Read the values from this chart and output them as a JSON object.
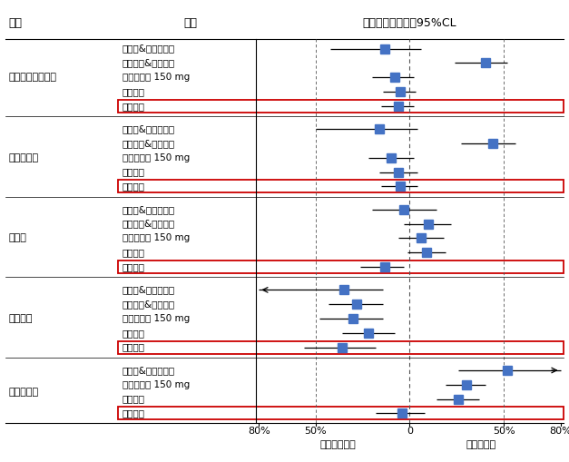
{
  "col1_header": "结局",
  "col2_header": "药物",
  "col3_header": "相对风险比降幅及95%CL",
  "xlabel_left": "对照方案更佳",
  "xlabel_right": "华法林更佳",
  "xtick_labels": [
    "80%",
    "50%",
    "0",
    "50%",
    "80%"
  ],
  "xtick_positions": [
    -80,
    -50,
    0,
    50,
    80
  ],
  "dashed_lines": [
    -50,
    0,
    50
  ],
  "groups": [
    {
      "name": "卒中或系统性栓塞",
      "rows": [
        {
          "label": "三氟柳&醋硝香豆醇",
          "point": -13,
          "ci_low": -42,
          "ci_high": 6,
          "arrow_left": false,
          "arrow_right": false,
          "highlight": false
        },
        {
          "label": "氯吡格雷&阿司匹林",
          "point": 40,
          "ci_low": 24,
          "ci_high": 52,
          "arrow_left": false,
          "arrow_right": false,
          "highlight": false
        },
        {
          "label": "达比加群酯 150 mg",
          "point": -8,
          "ci_low": -20,
          "ci_high": 2,
          "arrow_left": false,
          "arrow_right": false,
          "highlight": false
        },
        {
          "label": "利伐沙班",
          "point": -5,
          "ci_low": -14,
          "ci_high": 3,
          "arrow_left": false,
          "arrow_right": false,
          "highlight": false
        },
        {
          "label": "阿哌沙班",
          "point": -6,
          "ci_low": -15,
          "ci_high": 2,
          "arrow_left": false,
          "arrow_right": false,
          "highlight": true
        }
      ]
    },
    {
      "name": "缺血性卒中",
      "rows": [
        {
          "label": "三氟柳&醋硝香豆醇",
          "point": -16,
          "ci_low": -50,
          "ci_high": 4,
          "arrow_left": false,
          "arrow_right": false,
          "highlight": false
        },
        {
          "label": "氯吡格雷&阿司匹林",
          "point": 44,
          "ci_low": 27,
          "ci_high": 56,
          "arrow_left": false,
          "arrow_right": false,
          "highlight": false
        },
        {
          "label": "达比加群酯 150 mg",
          "point": -10,
          "ci_low": -22,
          "ci_high": 2,
          "arrow_left": false,
          "arrow_right": false,
          "highlight": false
        },
        {
          "label": "利伐沙班",
          "point": -6,
          "ci_low": -16,
          "ci_high": 4,
          "arrow_left": false,
          "arrow_right": false,
          "highlight": false
        },
        {
          "label": "阿哌沙班",
          "point": -5,
          "ci_low": -15,
          "ci_high": 4,
          "arrow_left": false,
          "arrow_right": false,
          "highlight": true
        }
      ]
    },
    {
      "name": "大出血",
      "rows": [
        {
          "label": "三氟柳&醋硝香豆醇",
          "point": -3,
          "ci_low": -20,
          "ci_high": 14,
          "arrow_left": false,
          "arrow_right": false,
          "highlight": false
        },
        {
          "label": "氯吡格雷&阿司匹林",
          "point": 10,
          "ci_low": -3,
          "ci_high": 22,
          "arrow_left": false,
          "arrow_right": false,
          "highlight": false
        },
        {
          "label": "达比加群酯 150 mg",
          "point": 6,
          "ci_low": -6,
          "ci_high": 18,
          "arrow_left": false,
          "arrow_right": false,
          "highlight": false
        },
        {
          "label": "利伐沙班",
          "point": 9,
          "ci_low": -1,
          "ci_high": 19,
          "arrow_left": false,
          "arrow_right": false,
          "highlight": false
        },
        {
          "label": "阿哌沙班",
          "point": -13,
          "ci_low": -26,
          "ci_high": -3,
          "arrow_left": false,
          "arrow_right": false,
          "highlight": true
        }
      ]
    },
    {
      "name": "颅内出血",
      "rows": [
        {
          "label": "三氟柳&醋硝香豆醇",
          "point": -35,
          "ci_low": -80,
          "ci_high": -14,
          "arrow_left": true,
          "arrow_right": false,
          "highlight": false
        },
        {
          "label": "氯吡格雷&阿司匹林",
          "point": -28,
          "ci_low": -43,
          "ci_high": -14,
          "arrow_left": false,
          "arrow_right": false,
          "highlight": false
        },
        {
          "label": "达比加群酯 150 mg",
          "point": -30,
          "ci_low": -48,
          "ci_high": -14,
          "arrow_left": false,
          "arrow_right": false,
          "highlight": false
        },
        {
          "label": "利伐沙班",
          "point": -22,
          "ci_low": -36,
          "ci_high": -8,
          "arrow_left": false,
          "arrow_right": false,
          "highlight": false
        },
        {
          "label": "阿哌沙班",
          "point": -36,
          "ci_low": -56,
          "ci_high": -18,
          "arrow_left": false,
          "arrow_right": false,
          "highlight": true
        }
      ]
    },
    {
      "name": "胃肠道出血",
      "rows": [
        {
          "label": "三氟柳&醋硝香豆醇",
          "point": 52,
          "ci_low": 26,
          "ci_high": 80,
          "arrow_left": false,
          "arrow_right": true,
          "highlight": false
        },
        {
          "label": "达比加群酯 150 mg",
          "point": 30,
          "ci_low": 19,
          "ci_high": 40,
          "arrow_left": false,
          "arrow_right": false,
          "highlight": false
        },
        {
          "label": "利伐沙班",
          "point": 26,
          "ci_low": 14,
          "ci_high": 37,
          "arrow_left": false,
          "arrow_right": false,
          "highlight": false
        },
        {
          "label": "阿哌沙班",
          "point": -4,
          "ci_low": -18,
          "ci_high": 8,
          "arrow_left": false,
          "arrow_right": false,
          "highlight": true
        }
      ]
    }
  ],
  "point_color": "#4472C4",
  "line_color": "#000000",
  "highlight_box_color": "#CC0000",
  "bg_color": "#FFFFFF",
  "text_color": "#000000",
  "marker_size": 7,
  "figsize": [
    6.27,
    5.09
  ],
  "dpi": 100
}
